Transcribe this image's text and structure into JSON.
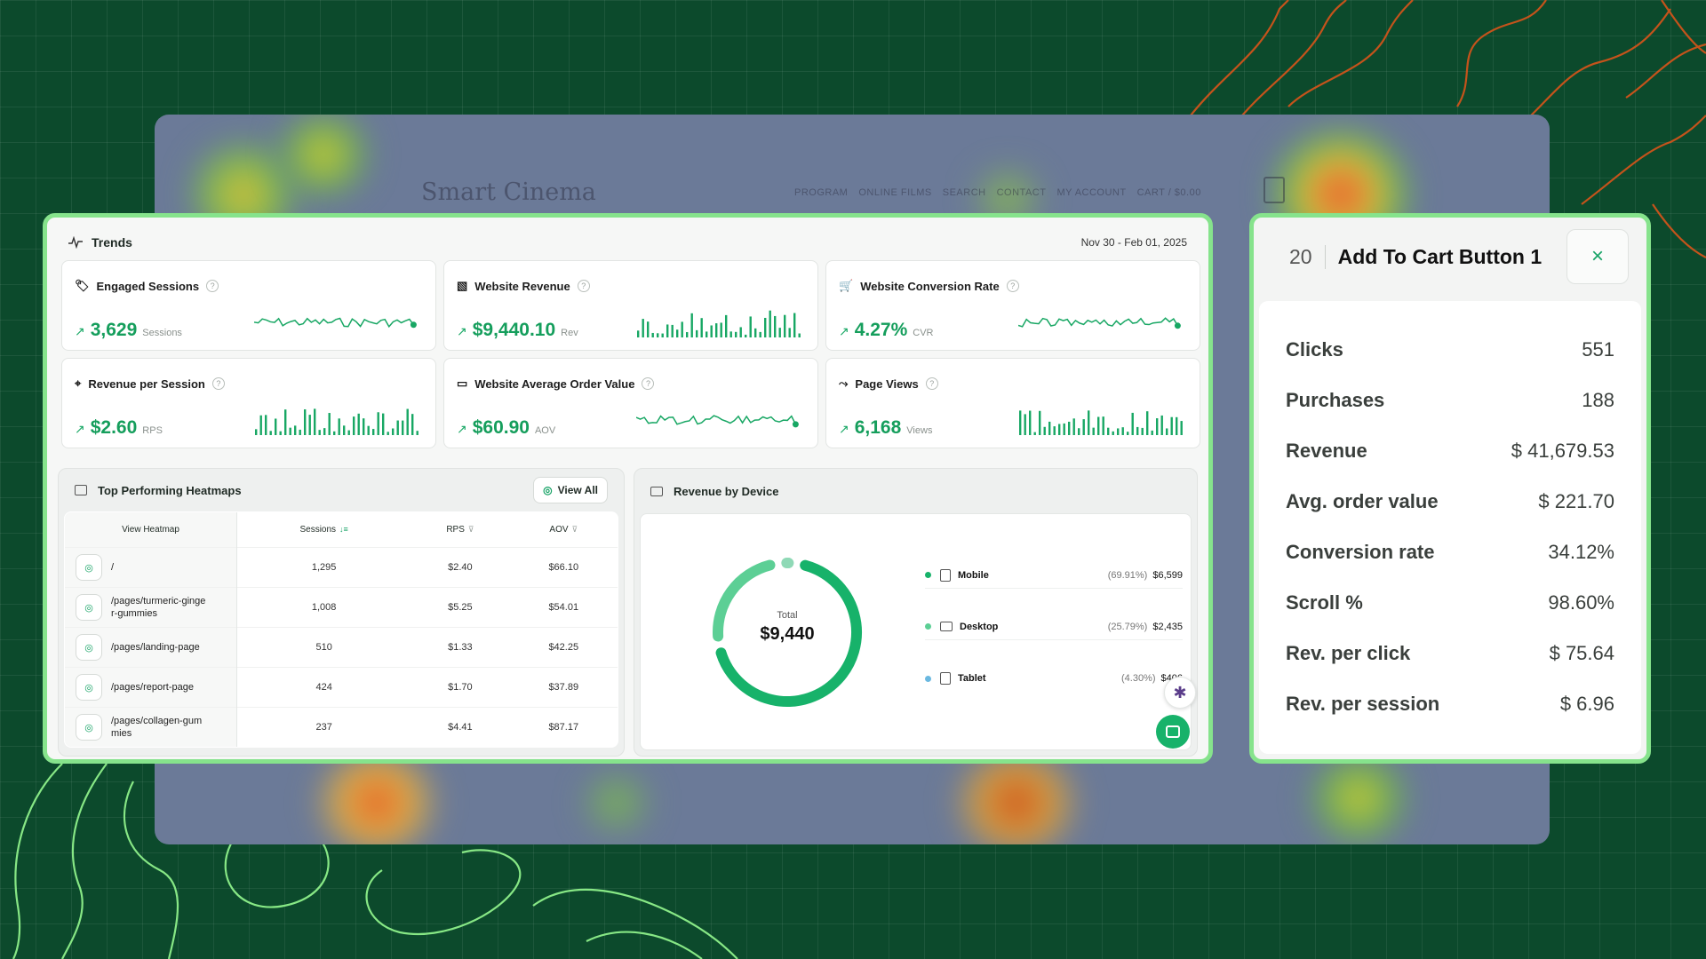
{
  "background_site": {
    "logo": "Smart Cinema",
    "nav": [
      "PROGRAM",
      "ONLINE FILMS",
      "SEARCH",
      "CONTACT",
      "MY ACCOUNT",
      "CART / $0.00"
    ]
  },
  "trends": {
    "title": "Trends",
    "date_range": "Nov 30 - Feb 01, 2025",
    "metrics": [
      {
        "label": "Engaged Sessions",
        "value": "3,629",
        "unit": "Sessions",
        "icon": "tag-icon",
        "chart": "line"
      },
      {
        "label": "Website Revenue",
        "value": "$9,440.10",
        "unit": "Rev",
        "icon": "chart-icon",
        "chart": "bar"
      },
      {
        "label": "Website Conversion Rate",
        "value": "4.27%",
        "unit": "CVR",
        "icon": "cart-icon",
        "chart": "line"
      },
      {
        "label": "Revenue per Session",
        "value": "$2.60",
        "unit": "RPS",
        "icon": "cursor-icon",
        "chart": "bar"
      },
      {
        "label": "Website Average Order Value",
        "value": "$60.90",
        "unit": "AOV",
        "icon": "wallet-icon",
        "chart": "line"
      },
      {
        "label": "Page Views",
        "value": "6,168",
        "unit": "Views",
        "icon": "route-icon",
        "chart": "bar"
      }
    ]
  },
  "heatmaps": {
    "title": "Top Performing Heatmaps",
    "view_all": "View All",
    "columns": [
      "View Heatmap",
      "Sessions",
      "RPS",
      "AOV"
    ],
    "rows": [
      {
        "path": "/",
        "sessions": "1,295",
        "rps": "$2.40",
        "aov": "$66.10"
      },
      {
        "path": "/pages/turmeric-ginger-gummies",
        "sessions": "1,008",
        "rps": "$5.25",
        "aov": "$54.01"
      },
      {
        "path": "/pages/landing-page",
        "sessions": "510",
        "rps": "$1.33",
        "aov": "$42.25"
      },
      {
        "path": "/pages/report-page",
        "sessions": "424",
        "rps": "$1.70",
        "aov": "$37.89"
      },
      {
        "path": "/pages/collagen-gummies",
        "sessions": "237",
        "rps": "$4.41",
        "aov": "$87.17"
      }
    ]
  },
  "revenue_by_device": {
    "title": "Revenue by Device",
    "total_label": "Total",
    "total_value": "$9,440",
    "devices": [
      {
        "name": "Mobile",
        "pct": "(69.91%)",
        "amount": "$6,599",
        "share": 0.6991,
        "color": "#17b26a"
      },
      {
        "name": "Desktop",
        "pct": "(25.79%)",
        "amount": "$2,435",
        "share": 0.2579,
        "color": "#5ccf95"
      },
      {
        "name": "Tablet",
        "pct": "(4.30%)",
        "amount": "$406",
        "share": 0.043,
        "color": "#8fd9b6"
      }
    ]
  },
  "detail": {
    "number": "20",
    "title": "Add To Cart Button 1",
    "close": "×",
    "stats": [
      {
        "label": "Clicks",
        "value": "551"
      },
      {
        "label": "Purchases",
        "value": "188"
      },
      {
        "label": "Revenue",
        "value": "$ 41,679.53"
      },
      {
        "label": "Avg. order value",
        "value": "$ 221.70"
      },
      {
        "label": "Conversion rate",
        "value": "34.12%"
      },
      {
        "label": "Scroll %",
        "value": "98.60%"
      },
      {
        "label": "Rev. per click",
        "value": "$ 75.64"
      },
      {
        "label": "Rev. per session",
        "value": "$ 6.96"
      }
    ]
  }
}
